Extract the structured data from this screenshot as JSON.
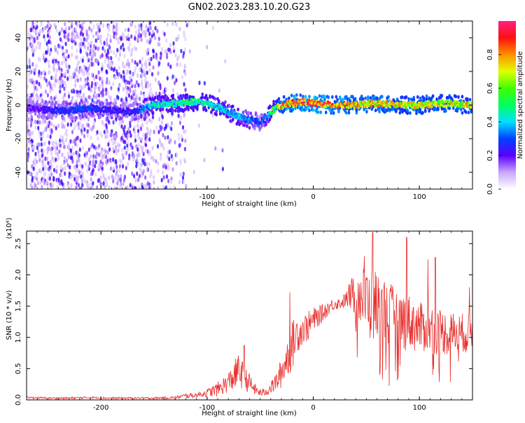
{
  "title": "GN02.2023.283.10.20.G23",
  "colors": {
    "snr_line": "#e8302e",
    "grid_tick": "#000000"
  },
  "colorbar": {
    "label": "Normalized spectral amplitude",
    "ticks": [
      "0.0",
      "0.2",
      "0.4",
      "0.6",
      "0.8"
    ],
    "range": [
      0,
      1
    ]
  },
  "chart_data": [
    {
      "type": "heatmap",
      "name": "spectrogram",
      "xlabel": "Height of straight line (km)",
      "ylabel": "Frequency (Hz)",
      "xlim": [
        -270,
        150
      ],
      "ylim": [
        -50,
        50
      ],
      "xticks": [
        "-200",
        "-100",
        "0",
        "100"
      ],
      "yticks": [
        "-40",
        "-20",
        "0",
        "20",
        "40"
      ],
      "ridge": {
        "x": [
          -268,
          -250,
          -230,
          -210,
          -190,
          -170,
          -150,
          -130,
          -110,
          -100,
          -90,
          -80,
          -70,
          -60,
          -50,
          -45,
          -40,
          -30,
          -20,
          -10,
          0,
          20,
          40,
          60,
          80,
          100,
          120,
          150
        ],
        "y": [
          -2,
          -3,
          -3,
          -2,
          -3,
          -4,
          0,
          1,
          2,
          1,
          -1,
          -4,
          -7,
          -9,
          -10,
          -8,
          -4,
          0,
          1,
          2,
          1,
          0,
          0,
          1,
          0,
          0,
          1,
          0
        ],
        "amplitude": [
          0.2,
          0.25,
          0.3,
          0.3,
          0.25,
          0.25,
          0.45,
          0.5,
          0.5,
          0.5,
          0.45,
          0.4,
          0.4,
          0.35,
          0.3,
          0.35,
          0.5,
          0.8,
          0.85,
          0.9,
          0.9,
          0.85,
          0.8,
          0.8,
          0.75,
          0.75,
          0.7,
          0.75
        ]
      }
    },
    {
      "type": "line",
      "name": "snr",
      "xlabel": "Height of straight line (km)",
      "ylabel": "SNR (10 * v/v)",
      "yunit": "(x10⁴)",
      "xlim": [
        -270,
        150
      ],
      "ylim": [
        0,
        2.7
      ],
      "xticks": [
        "-200",
        "-100",
        "0",
        "100"
      ],
      "yticks": [
        "0.0",
        "0.5",
        "1.0",
        "1.5",
        "2.0",
        "2.5"
      ],
      "x": [
        -270,
        -250,
        -230,
        -210,
        -190,
        -170,
        -150,
        -130,
        -120,
        -110,
        -100,
        -90,
        -80,
        -75,
        -70,
        -65,
        -60,
        -55,
        -50,
        -45,
        -40,
        -35,
        -30,
        -25,
        -20,
        -15,
        -10,
        -5,
        0,
        5,
        10,
        15,
        20,
        25,
        30,
        35,
        40,
        45,
        50,
        55,
        60,
        65,
        70,
        75,
        80,
        85,
        90,
        95,
        100,
        105,
        110,
        115,
        120,
        125,
        130,
        135,
        140,
        145,
        150
      ],
      "y": [
        0.04,
        0.03,
        0.03,
        0.04,
        0.03,
        0.03,
        0.03,
        0.04,
        0.07,
        0.08,
        0.12,
        0.18,
        0.3,
        0.4,
        0.5,
        0.38,
        0.28,
        0.18,
        0.12,
        0.13,
        0.2,
        0.3,
        0.45,
        0.7,
        0.9,
        1.1,
        1.15,
        1.2,
        1.3,
        1.35,
        1.42,
        1.5,
        1.55,
        1.55,
        1.6,
        1.7,
        1.75,
        1.7,
        1.65,
        1.6,
        1.55,
        1.5,
        1.45,
        1.4,
        1.35,
        1.3,
        1.3,
        1.25,
        1.2,
        1.2,
        1.2,
        1.15,
        1.15,
        1.1,
        1.1,
        1.1,
        1.1,
        1.1,
        1.15
      ],
      "spread": [
        0.02,
        0.02,
        0.02,
        0.02,
        0.02,
        0.02,
        0.02,
        0.03,
        0.05,
        0.05,
        0.08,
        0.15,
        0.2,
        0.3,
        0.35,
        0.25,
        0.2,
        0.12,
        0.08,
        0.08,
        0.12,
        0.2,
        0.3,
        0.4,
        0.5,
        0.4,
        0.3,
        0.3,
        0.25,
        0.2,
        0.18,
        0.15,
        0.12,
        0.12,
        0.15,
        0.3,
        0.5,
        0.6,
        0.7,
        0.8,
        0.75,
        0.7,
        0.65,
        0.6,
        0.6,
        0.6,
        0.55,
        0.55,
        0.5,
        0.5,
        0.5,
        0.5,
        0.45,
        0.45,
        0.45,
        0.4,
        0.4,
        0.4,
        0.4
      ],
      "peaks": [
        {
          "x": 56,
          "y": 2.68
        },
        {
          "x": 88,
          "y": 2.6
        },
        {
          "x": 115,
          "y": 2.28
        },
        {
          "x": 108,
          "y": 2.25
        },
        {
          "x": 48,
          "y": 2.3
        },
        {
          "x": -22,
          "y": 1.72
        },
        {
          "x": -65,
          "y": 0.87
        },
        {
          "x": 147,
          "y": 1.8
        }
      ]
    }
  ]
}
